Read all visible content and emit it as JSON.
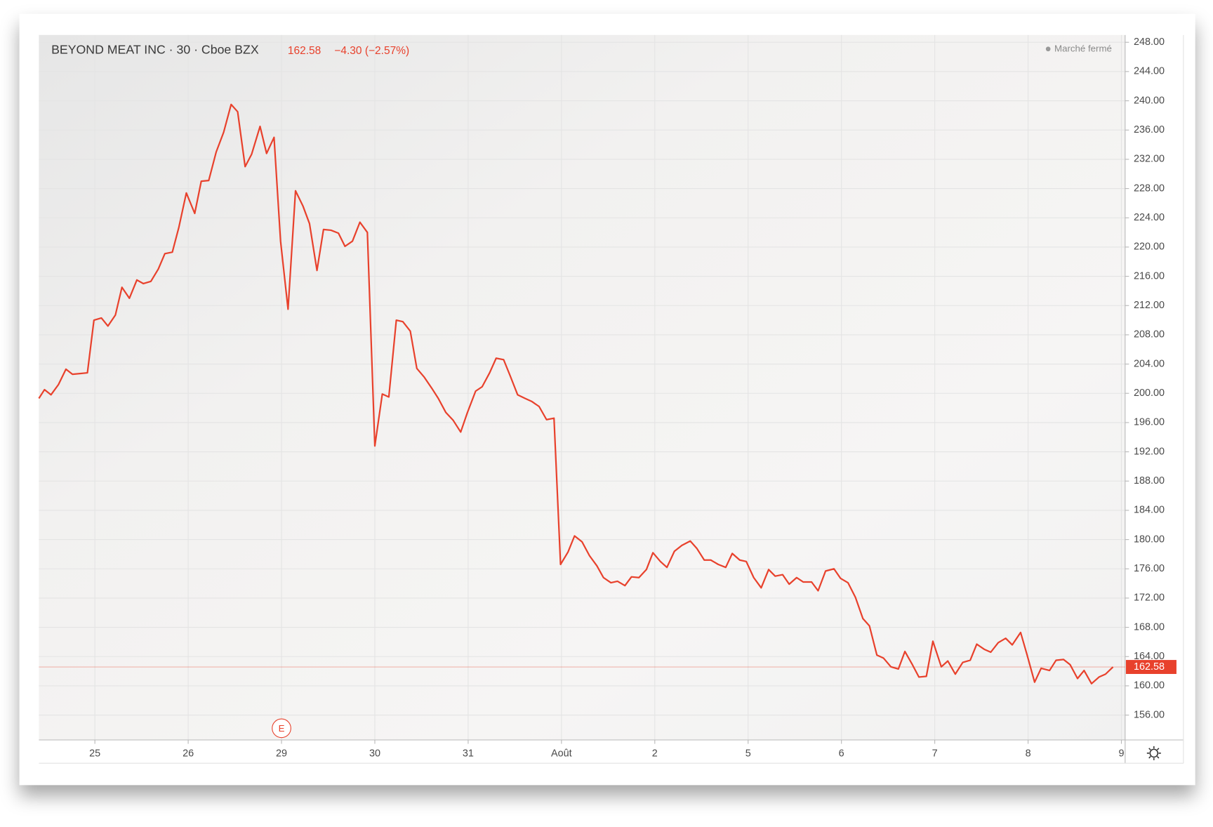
{
  "chart_data": {
    "type": "line",
    "title": "BEYOND MEAT INC · 30 · Cboe BZX",
    "change": "−4.30 (−2.57%)",
    "status": "Marché fermé",
    "last_price": {
      "value": 162.58,
      "label": "162.58"
    },
    "events": [
      {
        "x": 2.0,
        "label": "E"
      }
    ],
    "xlim": [
      -0.6,
      11.04
    ],
    "xticks": [
      {
        "value": 0,
        "label": "25"
      },
      {
        "value": 1,
        "label": "26"
      },
      {
        "value": 2,
        "label": "29"
      },
      {
        "value": 3,
        "label": "30"
      },
      {
        "value": 4,
        "label": "31"
      },
      {
        "value": 5,
        "label": "Août"
      },
      {
        "value": 6,
        "label": "2"
      },
      {
        "value": 7,
        "label": "5"
      },
      {
        "value": 8,
        "label": "6"
      },
      {
        "value": 9,
        "label": "7"
      },
      {
        "value": 10,
        "label": "8"
      },
      {
        "value": 11,
        "label": "9"
      }
    ],
    "ylim": [
      152.6,
      249
    ],
    "yticks": [
      {
        "value": 156,
        "label": "156.00"
      },
      {
        "value": 160,
        "label": "160.00"
      },
      {
        "value": 164,
        "label": "164.00"
      },
      {
        "value": 168,
        "label": "168.00"
      },
      {
        "value": 172,
        "label": "172.00"
      },
      {
        "value": 176,
        "label": "176.00"
      },
      {
        "value": 180,
        "label": "180.00"
      },
      {
        "value": 184,
        "label": "184.00"
      },
      {
        "value": 188,
        "label": "188.00"
      },
      {
        "value": 192,
        "label": "192.00"
      },
      {
        "value": 196,
        "label": "196.00"
      },
      {
        "value": 200,
        "label": "200.00"
      },
      {
        "value": 204,
        "label": "204.00"
      },
      {
        "value": 208,
        "label": "208.00"
      },
      {
        "value": 212,
        "label": "212.00"
      },
      {
        "value": 216,
        "label": "216.00"
      },
      {
        "value": 220,
        "label": "220.00"
      },
      {
        "value": 224,
        "label": "224.00"
      },
      {
        "value": 228,
        "label": "228.00"
      },
      {
        "value": 232,
        "label": "232.00"
      },
      {
        "value": 236,
        "label": "236.00"
      },
      {
        "value": 240,
        "label": "240.00"
      },
      {
        "value": 244,
        "label": "244.00"
      },
      {
        "value": 248,
        "label": "248.00"
      }
    ],
    "grid": true,
    "series": [
      {
        "color": "#e8412c",
        "x": [
          -0.6,
          -0.54,
          -0.47,
          -0.39,
          -0.31,
          -0.24,
          -0.16,
          -0.08,
          -0.01,
          0.07,
          0.14,
          0.22,
          0.29,
          0.37,
          0.45,
          0.52,
          0.6,
          0.68,
          0.75,
          0.83,
          0.9,
          0.98,
          1.07,
          1.14,
          1.22,
          1.3,
          1.38,
          1.46,
          1.53,
          1.61,
          1.68,
          1.77,
          1.84,
          1.92,
          1.99,
          2.07,
          2.15,
          2.23,
          2.3,
          2.38,
          2.45,
          2.53,
          2.61,
          2.68,
          2.76,
          2.84,
          2.92,
          3.0,
          3.08,
          3.15,
          3.23,
          3.3,
          3.38,
          3.45,
          3.53,
          3.61,
          3.68,
          3.76,
          3.84,
          3.92,
          3.99,
          4.08,
          4.15,
          4.23,
          4.3,
          4.38,
          4.45,
          4.53,
          4.61,
          4.68,
          4.76,
          4.84,
          4.92,
          4.99,
          5.07,
          5.14,
          5.22,
          5.3,
          5.38,
          5.45,
          5.53,
          5.6,
          5.68,
          5.75,
          5.83,
          5.91,
          5.98,
          6.06,
          6.13,
          6.21,
          6.29,
          6.38,
          6.45,
          6.53,
          6.6,
          6.68,
          6.76,
          6.83,
          6.91,
          6.98,
          7.06,
          7.14,
          7.22,
          7.29,
          7.37,
          7.44,
          7.52,
          7.59,
          7.68,
          7.75,
          7.83,
          7.92,
          7.99,
          8.07,
          8.15,
          8.23,
          8.3,
          8.38,
          8.45,
          8.53,
          8.61,
          8.68,
          8.76,
          8.83,
          8.91,
          8.98,
          9.07,
          9.14,
          9.22,
          9.3,
          9.38,
          9.45,
          9.53,
          9.6,
          9.68,
          9.76,
          9.83,
          9.92,
          9.99,
          10.07,
          10.14,
          10.23,
          10.3,
          10.38,
          10.45,
          10.53,
          10.6,
          10.68,
          10.76,
          10.83,
          10.91
        ],
        "values": [
          199.3,
          200.5,
          199.8,
          201.2,
          203.3,
          202.6,
          202.7,
          202.8,
          210.0,
          210.3,
          209.2,
          210.7,
          214.5,
          213.0,
          215.5,
          215.0,
          215.3,
          217.0,
          219.1,
          219.3,
          222.7,
          227.4,
          224.6,
          229.0,
          229.1,
          233.0,
          235.7,
          239.5,
          238.5,
          231.0,
          232.7,
          236.5,
          232.8,
          235.0,
          220.8,
          211.5,
          227.7,
          225.6,
          223.2,
          216.8,
          222.4,
          222.3,
          221.9,
          220.1,
          220.8,
          223.4,
          222.0,
          192.8,
          199.9,
          199.5,
          210.0,
          209.8,
          208.5,
          203.4,
          202.2,
          200.7,
          199.3,
          197.4,
          196.3,
          194.7,
          197.3,
          200.3,
          200.9,
          202.8,
          204.8,
          204.6,
          202.4,
          199.8,
          199.3,
          198.9,
          198.2,
          196.4,
          196.6,
          176.6,
          178.3,
          180.5,
          179.7,
          177.8,
          176.4,
          174.8,
          174.1,
          174.3,
          173.7,
          174.9,
          174.8,
          175.9,
          178.2,
          177.0,
          176.2,
          178.4,
          179.2,
          179.8,
          178.8,
          177.2,
          177.2,
          176.6,
          176.2,
          178.1,
          177.2,
          177.0,
          174.8,
          173.4,
          175.9,
          175.0,
          175.2,
          173.9,
          174.8,
          174.2,
          174.2,
          173.0,
          175.7,
          176.0,
          174.7,
          174.1,
          172.1,
          169.2,
          168.2,
          164.2,
          163.8,
          162.6,
          162.3,
          164.7,
          162.9,
          161.2,
          161.3,
          166.1,
          162.6,
          163.4,
          161.6,
          163.2,
          163.5,
          165.7,
          165.0,
          164.6,
          165.9,
          166.5,
          165.6,
          167.3,
          164.2,
          160.5,
          162.4,
          162.1,
          163.5,
          163.6,
          162.9,
          161.0,
          162.1,
          160.3,
          161.2,
          161.6,
          162.58
        ]
      }
    ]
  }
}
